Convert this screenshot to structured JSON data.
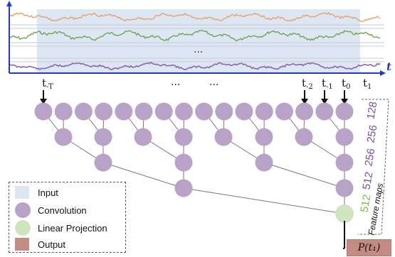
{
  "plot": {
    "axis_label": "t",
    "dots": "...",
    "colors": {
      "orange": "#e8a26a",
      "green": "#6aa84f",
      "purple": "#8e63b5",
      "axis": "#1f3cc8",
      "input_bg": "#dde6f3"
    }
  },
  "time_labels": {
    "t_minus_T": {
      "base": "t",
      "sub": "-T"
    },
    "t_minus_2": {
      "base": "t",
      "sub": "-2"
    },
    "t_minus_1": {
      "base": "t",
      "sub": "-1"
    },
    "t_0": {
      "base": "t",
      "sub": "0"
    },
    "t_1": {
      "base": "t",
      "sub": "1"
    },
    "ellipsis_1": "...",
    "ellipsis_2": "..."
  },
  "feature_maps": {
    "values": [
      "128",
      "256",
      "256",
      "512",
      "512"
    ],
    "title": "Feature maps",
    "value_color": "#7a4fa8",
    "last_color": "#7dbb52"
  },
  "legend": {
    "items": [
      {
        "label": "Input",
        "color": "#dde6f3",
        "shape": "square"
      },
      {
        "label": "Convolution",
        "color": "#b9a2c8",
        "shape": "circle"
      },
      {
        "label": "Linear Projection",
        "color": "#cfe5bf",
        "shape": "circle"
      },
      {
        "label": "Output",
        "color": "#c48b82",
        "shape": "square"
      }
    ]
  },
  "output_label": "P(t₁)",
  "node_colors": {
    "conv": "#b9a2c8",
    "projection": "#cfe5bf"
  }
}
